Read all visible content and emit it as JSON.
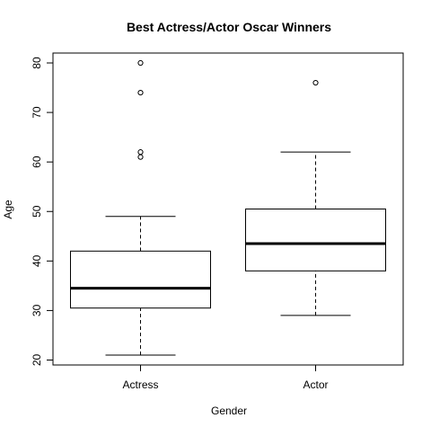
{
  "chart_data": {
    "type": "box",
    "title": "Best Actress/Actor Oscar Winners",
    "xlabel": "Gender",
    "ylabel": "Age",
    "categories": [
      "Actress",
      "Actor"
    ],
    "ylim": [
      19,
      82
    ],
    "yticks": [
      20,
      30,
      40,
      50,
      60,
      70,
      80
    ],
    "grid": false,
    "legend": "none",
    "series": [
      {
        "category": "Actress",
        "min": 21,
        "q1": 30.5,
        "median": 34.5,
        "q3": 42,
        "max": 49,
        "outliers": [
          61,
          62,
          74,
          80
        ]
      },
      {
        "category": "Actor",
        "min": 29,
        "q1": 38,
        "median": 43.5,
        "q3": 50.5,
        "max": 62,
        "outliers": [
          76
        ]
      }
    ]
  }
}
